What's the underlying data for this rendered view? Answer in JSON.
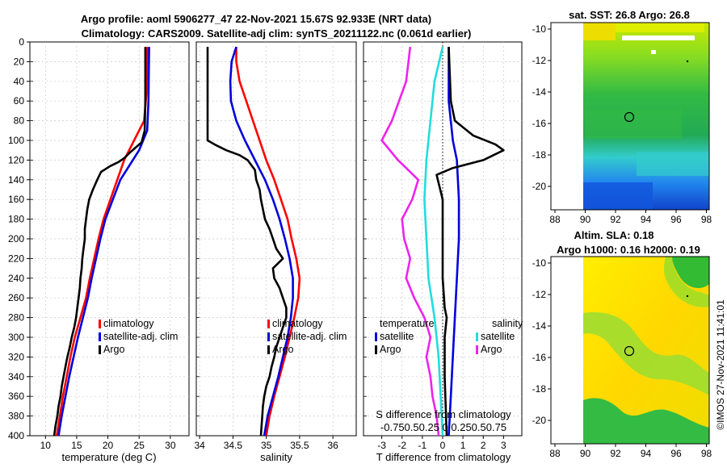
{
  "header": {
    "title_line1": "Argo profile: aoml 5906277_47 22-Nov-2021 15.67S 92.933E (NRT data)",
    "title_line2": "Climatology: CARS2009. Satellite-adj clim: synTS_20211122.nc (0.061d earlier)"
  },
  "colors": {
    "climatology": "#ff0000",
    "satellite": "#0000dd",
    "argo": "#000000",
    "sal_satellite": "#22dddd",
    "sal_argo": "#ee22ee"
  },
  "depth_axis": {
    "ylim": [
      0,
      400
    ],
    "ticks": [
      0,
      20,
      40,
      60,
      80,
      100,
      120,
      140,
      160,
      180,
      200,
      220,
      240,
      260,
      280,
      300,
      320,
      340,
      360,
      380,
      400
    ]
  },
  "chart_data": [
    {
      "type": "line",
      "title": "",
      "xlabel": "temperature (deg C)",
      "ylabel": "",
      "xlim": [
        7.5,
        33
      ],
      "xticks": [
        10,
        15,
        20,
        25,
        30
      ],
      "ylim": [
        400,
        0
      ],
      "legend": {
        "position": "right-middle",
        "items": [
          "climatology",
          "satellite-adj. clim",
          "Argo"
        ]
      },
      "series": [
        {
          "name": "climatology",
          "color_key": "climatology",
          "points": [
            [
              26.3,
              5
            ],
            [
              26.2,
              50
            ],
            [
              25.8,
              80
            ],
            [
              24.2,
              100
            ],
            [
              22.6,
              120
            ],
            [
              21.5,
              140
            ],
            [
              20.4,
              160
            ],
            [
              19.3,
              180
            ],
            [
              18.5,
              200
            ],
            [
              17.8,
              220
            ],
            [
              17.1,
              240
            ],
            [
              16.5,
              260
            ],
            [
              15.6,
              280
            ],
            [
              14.7,
              300
            ],
            [
              14.0,
              320
            ],
            [
              13.4,
              340
            ],
            [
              12.8,
              360
            ],
            [
              12.3,
              380
            ],
            [
              11.8,
              400
            ]
          ]
        },
        {
          "name": "satellite-adj. clim",
          "color_key": "satellite",
          "points": [
            [
              26.6,
              5
            ],
            [
              26.5,
              60
            ],
            [
              26.3,
              90
            ],
            [
              25.0,
              110
            ],
            [
              23.5,
              125
            ],
            [
              22.0,
              140
            ],
            [
              20.8,
              160
            ],
            [
              19.6,
              180
            ],
            [
              18.8,
              200
            ],
            [
              18.1,
              220
            ],
            [
              17.4,
              240
            ],
            [
              16.8,
              260
            ],
            [
              16.0,
              280
            ],
            [
              15.2,
              300
            ],
            [
              14.5,
              320
            ],
            [
              13.8,
              340
            ],
            [
              13.2,
              360
            ],
            [
              12.6,
              380
            ],
            [
              12.1,
              400
            ]
          ]
        },
        {
          "name": "Argo",
          "color_key": "argo",
          "points": [
            [
              26.0,
              5
            ],
            [
              26.0,
              60
            ],
            [
              25.9,
              90
            ],
            [
              25.4,
              102
            ],
            [
              23.6,
              112
            ],
            [
              22.6,
              118
            ],
            [
              21.7,
              122
            ],
            [
              20.4,
              126
            ],
            [
              18.9,
              132
            ],
            [
              18.3,
              140
            ],
            [
              17.6,
              150
            ],
            [
              17.0,
              160
            ],
            [
              16.7,
              170
            ],
            [
              16.5,
              180
            ],
            [
              16.3,
              190
            ],
            [
              16.3,
              200
            ],
            [
              16.1,
              210
            ],
            [
              15.9,
              220
            ],
            [
              15.8,
              230
            ],
            [
              15.6,
              240
            ],
            [
              15.5,
              250
            ],
            [
              15.3,
              260
            ],
            [
              15.1,
              270
            ],
            [
              14.9,
              280
            ],
            [
              14.6,
              290
            ],
            [
              14.2,
              300
            ],
            [
              13.9,
              310
            ],
            [
              13.5,
              320
            ],
            [
              13.2,
              330
            ],
            [
              12.9,
              340
            ],
            [
              12.6,
              350
            ],
            [
              12.4,
              360
            ],
            [
              12.1,
              370
            ],
            [
              11.9,
              380
            ],
            [
              11.6,
              390
            ],
            [
              11.4,
              400
            ]
          ]
        }
      ]
    },
    {
      "type": "line",
      "title": "",
      "xlabel": "salinity",
      "ylabel": "",
      "xlim": [
        33.95,
        36.35
      ],
      "xticks": [
        34,
        34.5,
        35,
        35.5,
        36
      ],
      "xtick_labels": [
        "34",
        "34.5",
        "35",
        "35.5",
        "36"
      ],
      "ylim": [
        400,
        0
      ],
      "legend": {
        "position": "right-middle",
        "items": [
          "climatology",
          "satellite-adj. clim",
          "Argo"
        ]
      },
      "series": [
        {
          "name": "climatology",
          "color_key": "climatology",
          "points": [
            [
              34.55,
              5
            ],
            [
              34.55,
              20
            ],
            [
              34.6,
              40
            ],
            [
              34.7,
              60
            ],
            [
              34.8,
              80
            ],
            [
              34.9,
              100
            ],
            [
              35.0,
              120
            ],
            [
              35.12,
              140
            ],
            [
              35.22,
              160
            ],
            [
              35.32,
              180
            ],
            [
              35.38,
              200
            ],
            [
              35.45,
              220
            ],
            [
              35.5,
              240
            ],
            [
              35.48,
              260
            ],
            [
              35.42,
              280
            ],
            [
              35.35,
              300
            ],
            [
              35.28,
              320
            ],
            [
              35.2,
              340
            ],
            [
              35.12,
              360
            ],
            [
              35.05,
              380
            ],
            [
              35.0,
              400
            ]
          ]
        },
        {
          "name": "satellite-adj. clim",
          "color_key": "satellite",
          "points": [
            [
              34.55,
              5
            ],
            [
              34.48,
              20
            ],
            [
              34.46,
              40
            ],
            [
              34.47,
              60
            ],
            [
              34.55,
              80
            ],
            [
              34.68,
              100
            ],
            [
              34.83,
              120
            ],
            [
              34.98,
              140
            ],
            [
              35.1,
              160
            ],
            [
              35.2,
              180
            ],
            [
              35.28,
              200
            ],
            [
              35.35,
              220
            ],
            [
              35.4,
              240
            ],
            [
              35.4,
              260
            ],
            [
              35.37,
              280
            ],
            [
              35.32,
              300
            ],
            [
              35.25,
              320
            ],
            [
              35.18,
              340
            ],
            [
              35.1,
              360
            ],
            [
              35.02,
              380
            ],
            [
              34.97,
              400
            ]
          ]
        },
        {
          "name": "Argo",
          "color_key": "argo",
          "points": [
            [
              34.12,
              5
            ],
            [
              34.12,
              40
            ],
            [
              34.12,
              80
            ],
            [
              34.12,
              100
            ],
            [
              34.25,
              105
            ],
            [
              34.4,
              110
            ],
            [
              34.6,
              115
            ],
            [
              34.72,
              120
            ],
            [
              34.83,
              130
            ],
            [
              34.85,
              140
            ],
            [
              34.9,
              150
            ],
            [
              34.92,
              160
            ],
            [
              34.95,
              170
            ],
            [
              34.98,
              180
            ],
            [
              35.05,
              190
            ],
            [
              35.1,
              200
            ],
            [
              35.15,
              210
            ],
            [
              35.25,
              220
            ],
            [
              35.1,
              230
            ],
            [
              35.12,
              240
            ],
            [
              35.2,
              250
            ],
            [
              35.25,
              260
            ],
            [
              35.3,
              270
            ],
            [
              35.3,
              280
            ],
            [
              35.25,
              290
            ],
            [
              35.2,
              300
            ],
            [
              35.15,
              310
            ],
            [
              35.12,
              320
            ],
            [
              35.08,
              330
            ],
            [
              35.05,
              340
            ],
            [
              35.0,
              350
            ],
            [
              34.97,
              360
            ],
            [
              34.95,
              370
            ],
            [
              34.94,
              380
            ],
            [
              34.93,
              390
            ],
            [
              34.92,
              400
            ]
          ]
        }
      ]
    },
    {
      "type": "line",
      "title": "",
      "xlabel": "T difference from climatology",
      "xlim": [
        -3.9,
        3.9
      ],
      "xticks": [
        -3,
        -2,
        -1,
        0,
        1,
        2,
        3
      ],
      "ylim": [
        400,
        0
      ],
      "secondary_xlabel": "S difference from climatology",
      "secondary_xtick_labels": "-0.75 0.5 0.25  0  0.25 0.5 0.75",
      "secondary_axis_text": "-0.750.50.25 0 0.250.50.75",
      "legend": {
        "position": "right-middle",
        "groups": [
          "temperature",
          "salinity"
        ],
        "items": [
          "satellite",
          "Argo",
          "satellite",
          "Argo"
        ]
      },
      "series": [
        {
          "name": "temperature satellite",
          "color_key": "satellite",
          "points": [
            [
              0.3,
              5
            ],
            [
              0.3,
              60
            ],
            [
              0.5,
              100
            ],
            [
              0.7,
              120
            ],
            [
              0.8,
              160
            ],
            [
              0.8,
              200
            ],
            [
              0.7,
              240
            ],
            [
              0.6,
              280
            ],
            [
              0.5,
              320
            ],
            [
              0.4,
              360
            ],
            [
              0.3,
              400
            ]
          ]
        },
        {
          "name": "temperature Argo",
          "color_key": "argo",
          "points": [
            [
              0.3,
              5
            ],
            [
              0.4,
              60
            ],
            [
              0.6,
              80
            ],
            [
              1.5,
              95
            ],
            [
              2.6,
              104
            ],
            [
              3.0,
              110
            ],
            [
              2.0,
              120
            ],
            [
              0.5,
              128
            ],
            [
              -0.3,
              135
            ],
            [
              0.0,
              160
            ],
            [
              0.0,
              200
            ],
            [
              0.0,
              240
            ],
            [
              0.1,
              270
            ],
            [
              0.2,
              280
            ],
            [
              0.1,
              300
            ],
            [
              0.1,
              340
            ],
            [
              0.2,
              400
            ]
          ]
        },
        {
          "name": "salinity satellite",
          "color_key": "sal_satellite",
          "points": [
            [
              0.0,
              5
            ],
            [
              -0.4,
              40
            ],
            [
              -0.6,
              80
            ],
            [
              -0.8,
              120
            ],
            [
              -0.9,
              160
            ],
            [
              -0.8,
              200
            ],
            [
              -0.7,
              240
            ],
            [
              -0.4,
              280
            ],
            [
              -0.2,
              320
            ],
            [
              -0.1,
              360
            ],
            [
              0.0,
              400
            ]
          ]
        },
        {
          "name": "salinity Argo",
          "color_key": "sal_argo",
          "points": [
            [
              -1.6,
              5
            ],
            [
              -1.8,
              40
            ],
            [
              -2.5,
              80
            ],
            [
              -3.0,
              100
            ],
            [
              -2.2,
              120
            ],
            [
              -1.2,
              140
            ],
            [
              -1.5,
              160
            ],
            [
              -2.0,
              180
            ],
            [
              -1.9,
              200
            ],
            [
              -1.6,
              220
            ],
            [
              -1.8,
              240
            ],
            [
              -1.4,
              260
            ],
            [
              -0.9,
              280
            ],
            [
              -0.6,
              300
            ],
            [
              -0.8,
              320
            ],
            [
              -0.6,
              340
            ],
            [
              -0.5,
              360
            ],
            [
              -0.3,
              380
            ],
            [
              -0.2,
              400
            ]
          ]
        }
      ]
    }
  ],
  "maps": {
    "sst": {
      "title": "sat. SST: 26.8 Argo: 26.8",
      "lat_ticks": [
        "-10",
        "-12",
        "-14",
        "-16",
        "-18",
        "-20"
      ],
      "lon_ticks": [
        "88",
        "90",
        "92",
        "94",
        "96",
        "98"
      ],
      "argo_position": {
        "lon": 92.933,
        "lat": -15.67
      }
    },
    "sla": {
      "title_line1": "Altim. SLA: 0.18",
      "title_line2": "Argo h1000: 0.16 h2000: 0.19",
      "lat_ticks": [
        "-10",
        "-12",
        "-14",
        "-16",
        "-18",
        "-20"
      ],
      "lon_ticks": [
        "88",
        "90",
        "92",
        "94",
        "96",
        "98"
      ],
      "argo_position": {
        "lon": 92.933,
        "lat": -15.67
      }
    }
  },
  "watermark": "©IMOS 27-Nov-2021 11:41:01",
  "legend_labels": {
    "climatology": "climatology",
    "satellite_adj": "satellite-adj. clim",
    "argo": "Argo",
    "temperature": "temperature",
    "salinity": "salinity",
    "satellite": "satellite"
  }
}
